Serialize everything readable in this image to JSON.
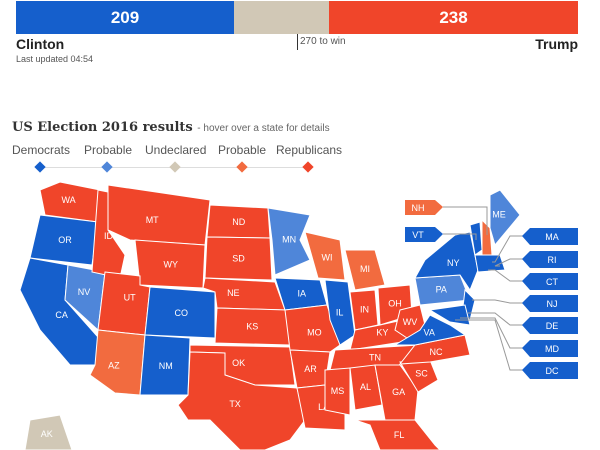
{
  "tally": {
    "democrats_votes": "209",
    "republicans_votes": "238",
    "democrat_name": "Clinton",
    "republican_name": "Trump",
    "last_updated": "Last updated 04:54",
    "threshold": "270 to win"
  },
  "title": "US Election 2016 results",
  "subtitle": "- hover over a state for details",
  "legend": [
    {
      "label": "Democrats",
      "color": "#155fcc"
    },
    {
      "label": "Probable",
      "color": "#4f86d9"
    },
    {
      "label": "Undeclared",
      "color": "#d1c8b6"
    },
    {
      "label": "Probable",
      "color": "#f26b3f"
    },
    {
      "label": "Republicans",
      "color": "#f0452a"
    }
  ],
  "colors": {
    "D": "#155fcc",
    "PD": "#4f86d9",
    "U": "#d1c8b6",
    "PR": "#f26b3f",
    "R": "#f0452a"
  },
  "states": {
    "WA": "R",
    "OR": "D",
    "CA": "D",
    "NV": "PD",
    "ID": "R",
    "MT": "R",
    "WY": "R",
    "UT": "R",
    "CO": "D",
    "AZ": "PR",
    "NM": "D",
    "ND": "R",
    "SD": "R",
    "NE": "R",
    "KS": "R",
    "OK": "R",
    "TX": "R",
    "MN": "PD",
    "IA": "D",
    "MO": "R",
    "AR": "R",
    "LA": "R",
    "WI": "PR",
    "IL": "D",
    "MI": "PR",
    "IN": "R",
    "OH": "R",
    "KY": "R",
    "TN": "R",
    "MS": "R",
    "AL": "R",
    "GA": "R",
    "SC": "R",
    "NC": "R",
    "FL": "R",
    "WV": "R",
    "VA": "D",
    "PA": "PD",
    "NY": "D",
    "NJ": "D",
    "MD": "D",
    "VT": "D",
    "NH": "PR",
    "ME": "PD",
    "MA": "D",
    "AK": "U"
  },
  "callouts": [
    {
      "label": "NH",
      "status": "PR"
    },
    {
      "label": "VT",
      "status": "D"
    },
    {
      "label": "MA",
      "status": "D"
    },
    {
      "label": "RI",
      "status": "D"
    },
    {
      "label": "CT",
      "status": "D"
    },
    {
      "label": "NJ",
      "status": "D"
    },
    {
      "label": "DE",
      "status": "D"
    },
    {
      "label": "MD",
      "status": "D"
    },
    {
      "label": "DC",
      "status": "D"
    }
  ]
}
